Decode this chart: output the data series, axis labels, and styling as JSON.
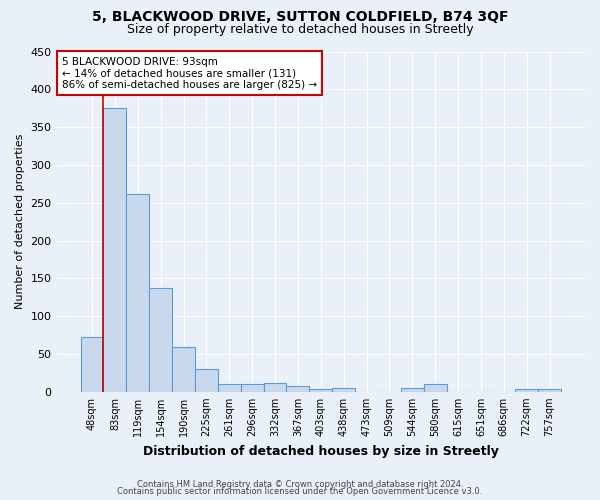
{
  "title1": "5, BLACKWOOD DRIVE, SUTTON COLDFIELD, B74 3QF",
  "title2": "Size of property relative to detached houses in Streetly",
  "xlabel": "Distribution of detached houses by size in Streetly",
  "ylabel": "Number of detached properties",
  "categories": [
    "48sqm",
    "83sqm",
    "119sqm",
    "154sqm",
    "190sqm",
    "225sqm",
    "261sqm",
    "296sqm",
    "332sqm",
    "367sqm",
    "403sqm",
    "438sqm",
    "473sqm",
    "509sqm",
    "544sqm",
    "580sqm",
    "615sqm",
    "651sqm",
    "686sqm",
    "722sqm",
    "757sqm"
  ],
  "values": [
    72,
    375,
    262,
    137,
    59,
    30,
    10,
    10,
    11,
    8,
    4,
    5,
    0,
    0,
    5,
    10,
    0,
    0,
    0,
    4,
    4
  ],
  "bar_color": "#c9d9ed",
  "bar_edge_color": "#5b9bd5",
  "annotation_line1": "5 BLACKWOOD DRIVE: 93sqm",
  "annotation_line2": "← 14% of detached houses are smaller (131)",
  "annotation_line3": "86% of semi-detached houses are larger (825) →",
  "ylim": [
    0,
    450
  ],
  "yticks": [
    0,
    50,
    100,
    150,
    200,
    250,
    300,
    350,
    400,
    450
  ],
  "footnote1": "Contains HM Land Registry data © Crown copyright and database right 2024.",
  "footnote2": "Contains public sector information licensed under the Open Government Licence v3.0.",
  "bg_color": "#eaf0f8",
  "plot_bg_color": "#eaf0f8",
  "title1_fontsize": 10,
  "title2_fontsize": 9,
  "annotation_box_color": "#ffffff",
  "annotation_box_edge": "#cc0000",
  "red_line_index": 1.0
}
